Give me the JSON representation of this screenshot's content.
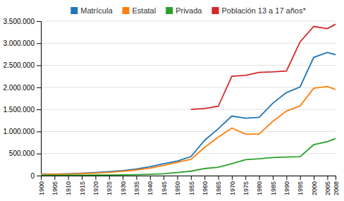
{
  "chart_data": {
    "type": "line",
    "x": [
      1900,
      1905,
      1910,
      1915,
      1920,
      1925,
      1930,
      1935,
      1940,
      1945,
      1950,
      1955,
      1960,
      1965,
      1970,
      1975,
      1980,
      1985,
      1990,
      1995,
      2000,
      2005,
      2008
    ],
    "series": [
      {
        "name": "Matrícula",
        "values": [
          30000,
          35000,
          42000,
          55000,
          70000,
          90000,
          115000,
          150000,
          200000,
          270000,
          330000,
          430000,
          800000,
          1060000,
          1350000,
          1300000,
          1320000,
          1640000,
          1880000,
          2010000,
          2680000,
          2790000,
          2740000
        ]
      },
      {
        "name": "Estatal",
        "values": [
          24000,
          28000,
          34000,
          46000,
          58000,
          75000,
          98000,
          128000,
          170000,
          228000,
          300000,
          370000,
          640000,
          870000,
          1080000,
          940000,
          940000,
          1230000,
          1460000,
          1580000,
          1980000,
          2020000,
          1950000
        ]
      },
      {
        "name": "Privada",
        "values": [
          6000,
          7000,
          8000,
          9000,
          12000,
          15000,
          17000,
          22000,
          30000,
          42000,
          70000,
          100000,
          160000,
          190000,
          270000,
          360000,
          380000,
          410000,
          420000,
          430000,
          700000,
          770000,
          840000
        ]
      },
      {
        "name": "Población 13 a 17 años*",
        "values": [
          null,
          null,
          null,
          null,
          null,
          null,
          null,
          null,
          null,
          null,
          null,
          1500000,
          1520000,
          1570000,
          2250000,
          2270000,
          2340000,
          2350000,
          2370000,
          3030000,
          3380000,
          3330000,
          3430000
        ]
      }
    ],
    "xlim": [
      1900,
      2008
    ],
    "xticks": [
      1900,
      1905,
      1910,
      1915,
      1920,
      1925,
      1930,
      1935,
      1940,
      1945,
      1950,
      1955,
      1960,
      1965,
      1970,
      1975,
      1980,
      1985,
      1990,
      1995,
      2000,
      2005,
      2008
    ],
    "ylim": [
      0,
      3500000
    ],
    "yticks": [
      0,
      {
        "value": 500000,
        "label": "500.000"
      },
      {
        "value": 1000000,
        "label": "1.000.000"
      },
      {
        "value": 1500000,
        "label": "1.500.000"
      },
      {
        "value": 2000000,
        "label": "2.000.000"
      },
      {
        "value": 2500000,
        "label": "2.500.000"
      },
      {
        "value": 3000000,
        "label": "3.000.000"
      },
      {
        "value": 3500000,
        "label": "3.500.000"
      }
    ],
    "grid": true,
    "legend": "top"
  }
}
